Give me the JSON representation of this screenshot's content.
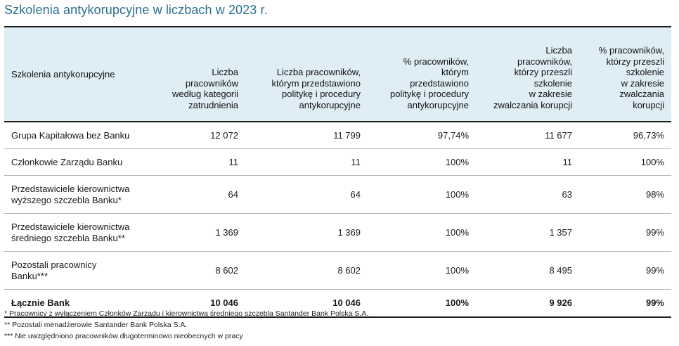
{
  "title": "Szkolenia antykorupcyjne w liczbach w 2023 r.",
  "table": {
    "headers": [
      "Szkolenia antykorupcyjne",
      "Liczba\npracowników\nwedług kategorii\nzatrudnienia",
      "Liczba pracowników,\nktórym przedstawiono\npolitykę i procedury\nantykorupcyjne",
      "% pracowników,\nktórym\nprzedstawiono\npolitykę i procedury\nantykorupcyjne",
      "Liczba\npracowników,\nktórzy przeszli\nszkolenie\nw zakresie\nzwalczania korupcji",
      "% pracowników,\nktórzy przeszli\nszkolenie\nw zakresie\nzwalczania korupcji"
    ],
    "rows": [
      [
        "Grupa Kapitałowa bez Banku",
        "12 072",
        "11 799",
        "97,74%",
        "11 677",
        "96,73%"
      ],
      [
        "Członkowie Zarządu Banku",
        "11",
        "11",
        "100%",
        "11",
        "100%"
      ],
      [
        "Przedstawiciele kierownictwa\nwyższego szczebla Banku*",
        "64",
        "64",
        "100%",
        "63",
        "98%"
      ],
      [
        "Przedstawiciele kierownictwa\nśredniego szczebla Banku**",
        "1 369",
        "1 369",
        "100%",
        "1 357",
        "99%"
      ],
      [
        "Pozostali pracownicy\nBanku***",
        "8 602",
        "8 602",
        "100%",
        "8 495",
        "99%"
      ]
    ],
    "total": [
      "Łącznie Bank",
      "10 046",
      "10 046",
      "100%",
      "9 926",
      "99%"
    ]
  },
  "footnotes": [
    "* Pracownicy z wyłączeniem Członków Zarządu i kierownictwa średniego szczebla Santander Bank Polska S.A.",
    "** Pozostali menadżerowie Santander Bank Polska S.A.",
    "*** Nie uwzględniono pracowników długoterminowo nieobecnych w pracy"
  ]
}
